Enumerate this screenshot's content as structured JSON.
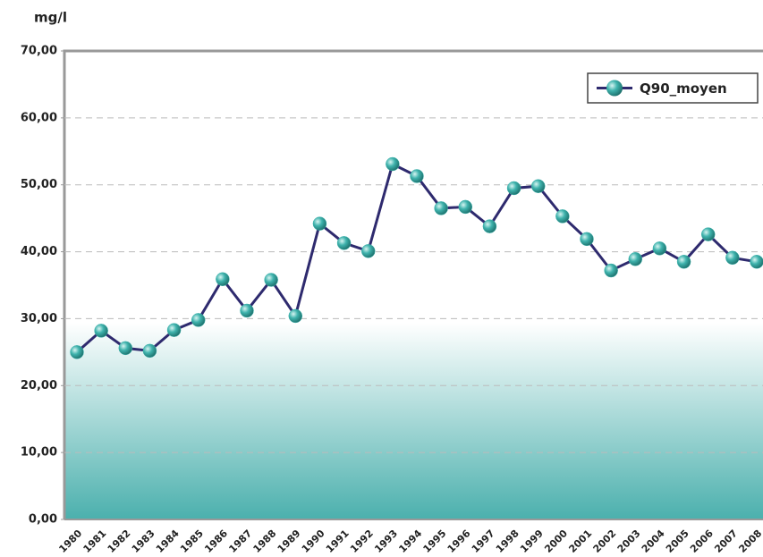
{
  "chart_data": {
    "type": "line",
    "y_label": "mg/l",
    "categories": [
      "1980",
      "1981",
      "1982",
      "1983",
      "1984",
      "1985",
      "1986",
      "1987",
      "1988",
      "1989",
      "1990",
      "1991",
      "1992",
      "1993",
      "1994",
      "1995",
      "1996",
      "1997",
      "1998",
      "1999",
      "2000",
      "2001",
      "2002",
      "2003",
      "2004",
      "2005",
      "2006",
      "2007",
      "2008"
    ],
    "series": [
      {
        "name": "Q90_moyen",
        "color": "#2e2a6e",
        "marker_color": "#3fb3ad",
        "values": [
          25.0,
          28.2,
          25.6,
          25.2,
          28.3,
          29.8,
          35.9,
          31.2,
          35.8,
          30.4,
          44.2,
          41.3,
          40.1,
          53.1,
          51.3,
          46.5,
          46.7,
          43.8,
          49.5,
          49.8,
          45.3,
          41.9,
          37.2,
          38.9,
          40.5,
          38.5,
          42.6,
          39.1,
          38.5
        ]
      }
    ],
    "ylim": [
      0,
      70
    ],
    "yticks": [
      {
        "value": 0,
        "label": "0,00"
      },
      {
        "value": 10,
        "label": "10,00"
      },
      {
        "value": 20,
        "label": "20,00"
      },
      {
        "value": 30,
        "label": "30,00"
      },
      {
        "value": 40,
        "label": "40,00"
      },
      {
        "value": 50,
        "label": "50,00"
      },
      {
        "value": 60,
        "label": "60,00"
      },
      {
        "value": 70,
        "label": "70,00"
      }
    ],
    "grid": true,
    "legend": "upper right"
  }
}
